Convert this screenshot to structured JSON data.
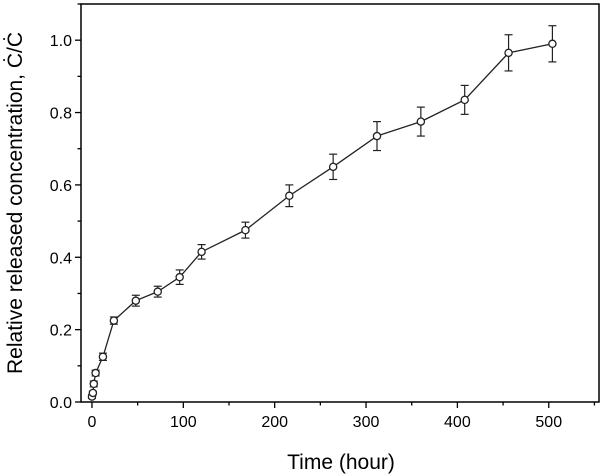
{
  "chart_data": {
    "type": "scatter",
    "xlabel": "Time (hour)",
    "ylabel": "Relative released concentration, Ċ/Ċ",
    "xlim": [
      -12,
      555
    ],
    "ylim": [
      0,
      1.1
    ],
    "x_ticks": [
      0,
      100,
      200,
      300,
      400,
      500
    ],
    "x_tick_labels": [
      "0",
      "100",
      "200",
      "300",
      "400",
      "500"
    ],
    "y_ticks": [
      0.0,
      0.2,
      0.4,
      0.6,
      0.8,
      1.0
    ],
    "y_tick_labels": [
      "0.0",
      "0.2",
      "0.4",
      "0.6",
      "0.8",
      "1.0"
    ],
    "grid": false,
    "series": [
      {
        "marker": "open-circle",
        "connected": true,
        "x": [
          0,
          1,
          2,
          4,
          12,
          24,
          48,
          72,
          96,
          120,
          168,
          216,
          264,
          312,
          360,
          408,
          456,
          504
        ],
        "y": [
          0.015,
          0.025,
          0.05,
          0.08,
          0.125,
          0.225,
          0.28,
          0.305,
          0.345,
          0.415,
          0.475,
          0.57,
          0.65,
          0.735,
          0.775,
          0.835,
          0.965,
          0.99
        ],
        "error": [
          0.005,
          0.005,
          0.008,
          0.008,
          0.01,
          0.01,
          0.015,
          0.015,
          0.02,
          0.02,
          0.022,
          0.03,
          0.035,
          0.04,
          0.04,
          0.04,
          0.05,
          0.05
        ]
      }
    ]
  }
}
